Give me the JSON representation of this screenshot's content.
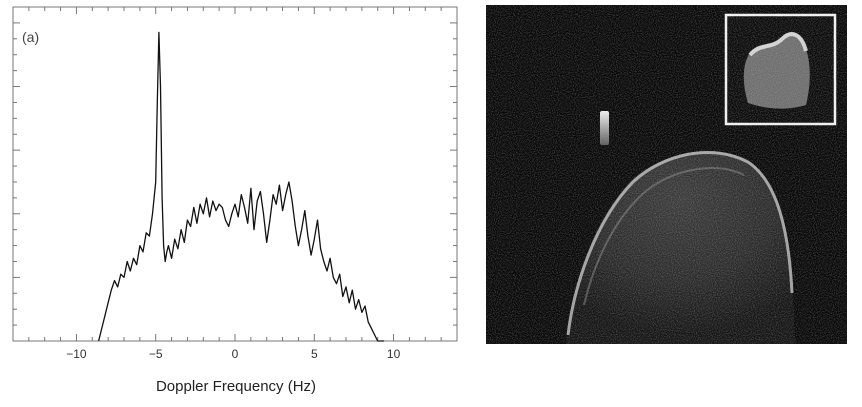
{
  "chart_data": {
    "type": "line",
    "panel_label": "(a)",
    "xlabel": "Doppler Frequency (Hz)",
    "ylabel": "",
    "xlim": [
      -14,
      14
    ],
    "ylim": [
      0,
      1.05
    ],
    "x_ticks": [
      -10,
      -5,
      0,
      5,
      10
    ],
    "x_tick_labels": [
      "−10",
      "−5",
      "0",
      "5",
      "10"
    ],
    "series": [
      {
        "x": [
          -8.6,
          -8.3,
          -8.0,
          -7.8,
          -7.6,
          -7.4,
          -7.2,
          -7.0,
          -6.8,
          -6.6,
          -6.4,
          -6.2,
          -6.0,
          -5.8,
          -5.6,
          -5.4,
          -5.2,
          -5.0,
          -4.9,
          -4.8,
          -4.7,
          -4.6,
          -4.5,
          -4.4,
          -4.3,
          -4.2,
          -4.0,
          -3.8,
          -3.6,
          -3.4,
          -3.2,
          -3.0,
          -2.8,
          -2.6,
          -2.4,
          -2.2,
          -2.0,
          -1.8,
          -1.6,
          -1.4,
          -1.2,
          -1.0,
          -0.8,
          -0.6,
          -0.4,
          -0.2,
          0.0,
          0.2,
          0.4,
          0.6,
          0.8,
          1.0,
          1.2,
          1.4,
          1.6,
          1.8,
          2.0,
          2.2,
          2.4,
          2.6,
          2.8,
          3.0,
          3.2,
          3.4,
          3.6,
          3.8,
          4.0,
          4.2,
          4.4,
          4.6,
          4.8,
          5.0,
          5.2,
          5.4,
          5.6,
          5.8,
          6.0,
          6.2,
          6.4,
          6.6,
          6.8,
          7.0,
          7.2,
          7.4,
          7.6,
          7.8,
          8.0,
          8.2,
          8.4,
          8.6,
          8.8,
          9.0,
          9.2,
          9.4
        ],
        "y": [
          0.0,
          0.06,
          0.12,
          0.16,
          0.19,
          0.17,
          0.21,
          0.2,
          0.25,
          0.22,
          0.26,
          0.24,
          0.3,
          0.28,
          0.34,
          0.33,
          0.4,
          0.5,
          0.75,
          0.97,
          0.8,
          0.45,
          0.3,
          0.25,
          0.28,
          0.3,
          0.26,
          0.32,
          0.29,
          0.35,
          0.31,
          0.38,
          0.36,
          0.42,
          0.37,
          0.43,
          0.4,
          0.45,
          0.39,
          0.44,
          0.41,
          0.43,
          0.42,
          0.38,
          0.36,
          0.4,
          0.43,
          0.39,
          0.46,
          0.42,
          0.37,
          0.48,
          0.35,
          0.44,
          0.47,
          0.4,
          0.31,
          0.38,
          0.46,
          0.43,
          0.49,
          0.41,
          0.46,
          0.5,
          0.44,
          0.36,
          0.3,
          0.35,
          0.41,
          0.33,
          0.27,
          0.32,
          0.38,
          0.29,
          0.25,
          0.22,
          0.26,
          0.2,
          0.18,
          0.21,
          0.14,
          0.17,
          0.12,
          0.16,
          0.1,
          0.13,
          0.09,
          0.11,
          0.06,
          0.04,
          0.02,
          0.0,
          -0.02,
          -0.04
        ]
      }
    ]
  }
}
